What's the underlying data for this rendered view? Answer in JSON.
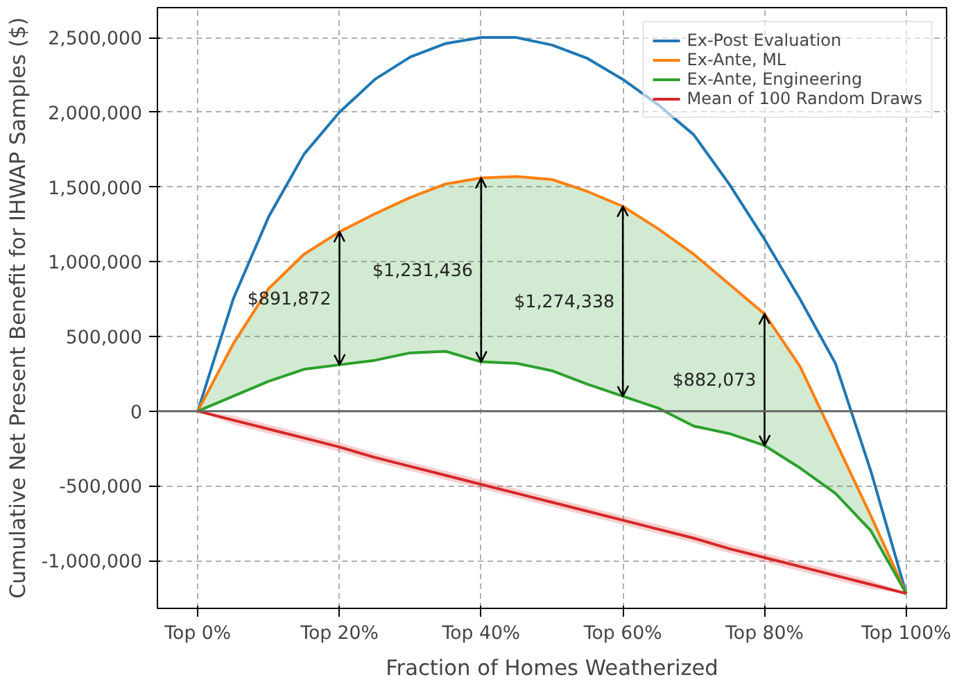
{
  "chart_data": {
    "type": "line",
    "xlabel": "Fraction of Homes Weatherized",
    "ylabel": "Cumulative Net Present Benefit for IHWAP Samples ($)",
    "categories": [
      "Top 0%",
      null,
      null,
      null,
      "Top 20%",
      null,
      null,
      null,
      "Top 40%",
      null,
      null,
      null,
      "Top 60%",
      null,
      null,
      null,
      "Top 80%",
      null,
      null,
      null,
      "Top 100%"
    ],
    "series": [
      {
        "name": "Ex-Post Evaluation",
        "color": "#1f77b4",
        "values": [
          0,
          750000,
          1300000,
          1720000,
          2000000,
          2220000,
          2370000,
          2460000,
          2500000,
          2500000,
          2450000,
          2360000,
          2220000,
          2050000,
          1850000,
          1520000,
          1150000,
          750000,
          320000,
          -400000,
          -1220000
        ]
      },
      {
        "name": "Ex-Ante, ML",
        "color": "#ff7f0e",
        "values": [
          0,
          450000,
          820000,
          1050000,
          1200000,
          1320000,
          1430000,
          1520000,
          1560000,
          1570000,
          1550000,
          1470000,
          1370000,
          1220000,
          1050000,
          850000,
          650000,
          300000,
          -200000,
          -700000,
          -1220000
        ],
        "lower": [
          0,
          100000,
          200000,
          280000,
          310000,
          340000,
          390000,
          400000,
          330000,
          320000,
          270000,
          180000,
          100000,
          20000,
          -100000,
          -150000,
          -230000,
          -380000,
          -550000,
          -800000,
          -1220000
        ],
        "upper": [
          0,
          450000,
          820000,
          1050000,
          1200000,
          1320000,
          1430000,
          1520000,
          1560000,
          1570000,
          1550000,
          1470000,
          1370000,
          1220000,
          1050000,
          850000,
          650000,
          300000,
          -200000,
          -700000,
          -1220000
        ]
      },
      {
        "name": "Ex-Ante, Engineering",
        "color": "#2ca02c",
        "values": [
          0,
          100000,
          200000,
          280000,
          310000,
          340000,
          390000,
          400000,
          330000,
          320000,
          270000,
          180000,
          100000,
          20000,
          -100000,
          -150000,
          -230000,
          -380000,
          -550000,
          -800000,
          -1220000
        ],
        "errors": [
          null,
          null,
          null,
          null,
          [
            310000,
            1200000
          ],
          null,
          null,
          null,
          [
            330000,
            1560000
          ],
          null,
          null,
          null,
          [
            100000,
            1370000
          ],
          null,
          null,
          null,
          [
            -230000,
            650000
          ],
          null,
          null,
          null,
          null
        ]
      },
      {
        "name": "Mean of 100 Random Draws",
        "color": "#d62728",
        "values": [
          0,
          -60000,
          -120000,
          -180000,
          -240000,
          -310000,
          -370000,
          -430000,
          -490000,
          -550000,
          -610000,
          -670000,
          -730000,
          -790000,
          -850000,
          -920000,
          -980000,
          -1040000,
          -1100000,
          -1160000,
          -1220000
        ],
        "lower": [
          0,
          -90000,
          -150000,
          -210000,
          -270000,
          -340000,
          -400000,
          -460000,
          -520000,
          -580000,
          -640000,
          -700000,
          -760000,
          -820000,
          -880000,
          -950000,
          -1010000,
          -1070000,
          -1130000,
          -1190000,
          -1220000
        ],
        "upper": [
          0,
          -30000,
          -90000,
          -150000,
          -210000,
          -280000,
          -340000,
          -400000,
          -460000,
          -520000,
          -580000,
          -640000,
          -700000,
          -760000,
          -820000,
          -890000,
          -950000,
          -1010000,
          -1070000,
          -1130000,
          -1220000
        ]
      }
    ],
    "annotations": [
      "$891,872",
      "$1,231,436",
      "$1,274,338",
      "$882,073"
    ],
    "ref_lines": [
      {
        "axis": "y",
        "value": 0,
        "color": "#666666"
      }
    ],
    "ylim": [
      -1320000,
      2700000
    ],
    "yticks": [
      {
        "value": -1000000,
        "label": "-1,000,000"
      },
      {
        "value": -500000,
        "label": "-500,000"
      },
      {
        "value": 0,
        "label": "0"
      },
      {
        "value": 500000,
        "label": "500,000"
      },
      {
        "value": 1000000,
        "label": "1,000,000"
      },
      {
        "value": 1500000,
        "label": "1,500,000"
      },
      {
        "value": 2000000,
        "label": "2,000,000"
      },
      {
        "value": 2500000,
        "label": "2,500,000"
      }
    ],
    "grid": true,
    "legend": "top right",
    "line_style": "solid",
    "marker": "none"
  }
}
